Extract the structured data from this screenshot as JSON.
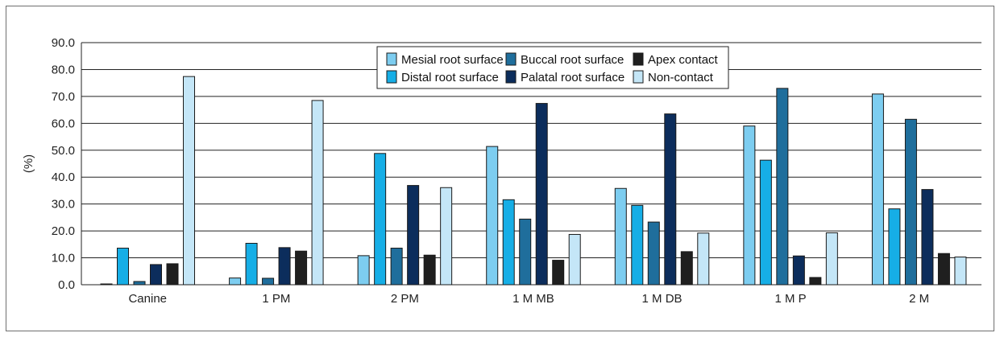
{
  "chart_data": {
    "type": "bar",
    "ylabel": "(%)",
    "ylim": [
      0,
      90
    ],
    "yticks": [
      "0.0",
      "10.0",
      "20.0",
      "30.0",
      "40.0",
      "50.0",
      "60.0",
      "70.0",
      "80.0",
      "90.0"
    ],
    "grid": true,
    "legend_position": "top-center",
    "categories": [
      "Canine",
      "1 PM",
      "2 PM",
      "1 M MB",
      "1 M DB",
      "1 M P",
      "2 M"
    ],
    "series": [
      {
        "name": "Mesial root surface",
        "color": "#7dcdf0",
        "values": [
          0.3,
          2.5,
          10.8,
          51.4,
          35.8,
          59.0,
          70.9
        ]
      },
      {
        "name": "Distal root surface",
        "color": "#16aee6",
        "values": [
          13.6,
          15.4,
          48.8,
          31.6,
          29.5,
          46.3,
          28.2
        ]
      },
      {
        "name": "Buccal root surface",
        "color": "#1f6e9c",
        "values": [
          1.2,
          2.4,
          13.6,
          24.4,
          23.3,
          73.0,
          61.5
        ]
      },
      {
        "name": "Palatal root surface",
        "color": "#0c2d5c",
        "values": [
          7.5,
          13.8,
          36.9,
          67.4,
          63.5,
          10.7,
          35.4
        ]
      },
      {
        "name": "Apex contact",
        "color": "#1f1f1f",
        "values": [
          7.8,
          12.5,
          11.0,
          9.1,
          12.3,
          2.7,
          11.6
        ]
      },
      {
        "name": "Non-contact",
        "color": "#c4e6f7",
        "values": [
          77.4,
          68.5,
          36.1,
          18.7,
          19.2,
          19.3,
          10.3
        ]
      }
    ]
  }
}
